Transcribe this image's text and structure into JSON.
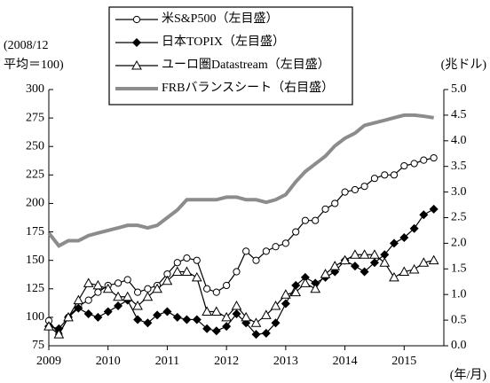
{
  "chart_data": {
    "type": "line",
    "left_axis_label": [
      "(2008/12",
      "平均＝100)"
    ],
    "right_axis_label": "(兆ドル)",
    "x_axis_label": "(年/月)",
    "x": [
      2009.0,
      2009.17,
      2009.33,
      2009.5,
      2009.67,
      2009.83,
      2010.0,
      2010.17,
      2010.33,
      2010.5,
      2010.67,
      2010.83,
      2011.0,
      2011.17,
      2011.33,
      2011.5,
      2011.67,
      2011.83,
      2012.0,
      2012.17,
      2012.33,
      2012.5,
      2012.67,
      2012.83,
      2013.0,
      2013.17,
      2013.33,
      2013.5,
      2013.67,
      2013.83,
      2014.0,
      2014.17,
      2014.33,
      2014.5,
      2014.67,
      2014.83,
      2015.0,
      2015.17,
      2015.33,
      2015.5
    ],
    "xlim": [
      2009,
      2015.67
    ],
    "xticks": [
      2009,
      2010,
      2011,
      2012,
      2013,
      2014,
      2015
    ],
    "ylim": [
      75,
      300
    ],
    "yticks": [
      75,
      100,
      125,
      150,
      175,
      200,
      225,
      250,
      275,
      300
    ],
    "y2lim": [
      0,
      5
    ],
    "y2ticks": [
      {
        "value": 0,
        "label": "0.0"
      },
      0.5,
      {
        "value": 1,
        "label": "1.0"
      },
      1.5,
      {
        "value": 2,
        "label": "2.0"
      },
      2.5,
      {
        "value": 3,
        "label": "3.0"
      },
      3.5,
      {
        "value": 4,
        "label": "4.0"
      },
      4.5,
      {
        "value": 5,
        "label": "5.0"
      }
    ],
    "series": [
      {
        "name": "米S&P500（左目盛）",
        "color": "#000000",
        "marker": "circle",
        "values": [
          97,
          85,
          100,
          110,
          115,
          122,
          128,
          130,
          133,
          122,
          125,
          128,
          138,
          148,
          152,
          150,
          125,
          122,
          128,
          140,
          158,
          150,
          158,
          162,
          165,
          175,
          185,
          185,
          195,
          200,
          210,
          212,
          215,
          222,
          225,
          225,
          233,
          235,
          238,
          240
        ]
      },
      {
        "name": "日本TOPIX（左目盛）",
        "color": "#000000",
        "marker": "diamond",
        "values": [
          92,
          90,
          100,
          108,
          103,
          100,
          105,
          110,
          115,
          98,
          95,
          102,
          105,
          100,
          98,
          98,
          90,
          88,
          92,
          103,
          95,
          85,
          86,
          95,
          112,
          128,
          135,
          130,
          135,
          140,
          150,
          145,
          140,
          148,
          155,
          165,
          170,
          178,
          190,
          195
        ]
      },
      {
        "name": "ユーロ圏Datastream（左目盛）",
        "color": "#000000",
        "marker": "triangle",
        "values": [
          92,
          85,
          100,
          115,
          130,
          128,
          125,
          118,
          118,
          110,
          118,
          125,
          132,
          140,
          140,
          135,
          105,
          105,
          100,
          110,
          100,
          95,
          102,
          110,
          120,
          122,
          130,
          125,
          138,
          145,
          150,
          155,
          155,
          155,
          148,
          135,
          140,
          142,
          148,
          150
        ]
      },
      {
        "name": "FRBバランスシート（右目盛）",
        "color": "#8c8c8c",
        "marker": "none",
        "axis": "y2",
        "values": [
          2.2,
          1.95,
          2.05,
          2.05,
          2.15,
          2.2,
          2.25,
          2.3,
          2.35,
          2.35,
          2.3,
          2.35,
          2.5,
          2.65,
          2.85,
          2.85,
          2.85,
          2.85,
          2.9,
          2.9,
          2.85,
          2.85,
          2.8,
          2.85,
          2.95,
          3.2,
          3.4,
          3.55,
          3.7,
          3.9,
          4.05,
          4.15,
          4.3,
          4.35,
          4.4,
          4.45,
          4.5,
          4.5,
          4.48,
          4.45
        ]
      }
    ]
  }
}
